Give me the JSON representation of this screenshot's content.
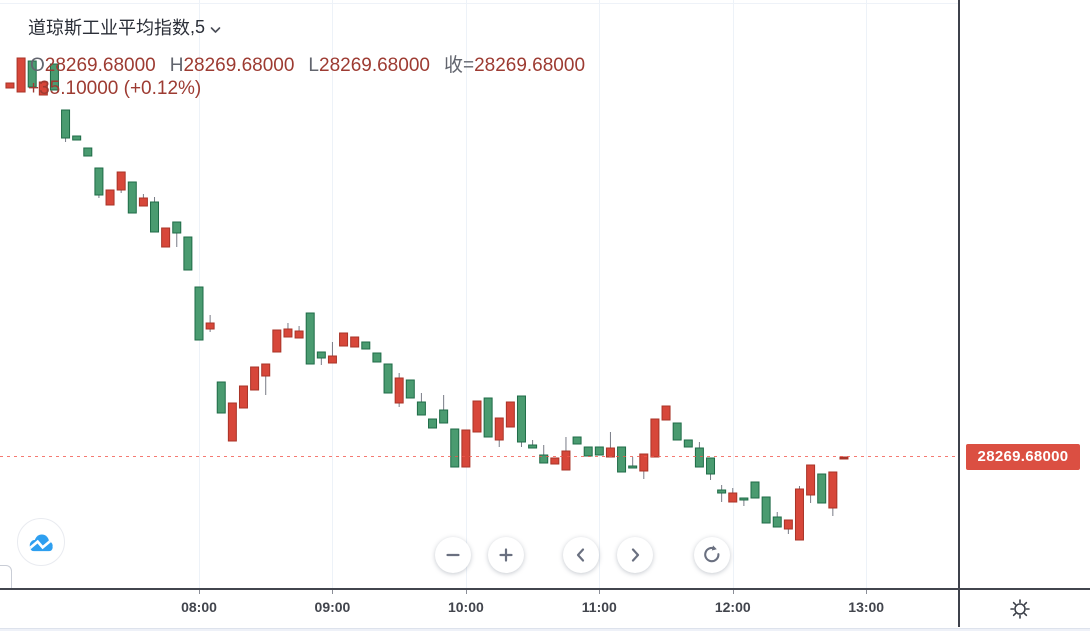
{
  "legend": {
    "symbol": "道琼斯工业平均指数",
    "separator": ", ",
    "interval": "5",
    "ohlc": [
      {
        "label": "O",
        "value": "28269.68000"
      },
      {
        "label": "H",
        "value": "28269.68000"
      },
      {
        "label": "L",
        "value": "28269.68000"
      },
      {
        "label": "收=",
        "value": "28269.68000"
      }
    ],
    "change": "+35.10000 (+0.12%)"
  },
  "price_axis": {
    "last_price": "28269.68000"
  },
  "time_axis": {
    "labels": [
      "08:00",
      "09:00",
      "10:00",
      "11:00",
      "12:00",
      "13:00"
    ]
  },
  "toolbar": {
    "buttons": [
      {
        "name": "zoom-out",
        "icon": "minus-icon"
      },
      {
        "name": "zoom-in",
        "icon": "plus-icon"
      },
      {
        "name": "pan-left",
        "icon": "chevron-left-icon"
      },
      {
        "name": "pan-right",
        "icon": "chevron-right-icon"
      },
      {
        "name": "reset",
        "icon": "reset-arrow-icon"
      }
    ]
  },
  "logo": {
    "icon": "cloud-chart-logo-icon"
  },
  "axis_settings": {
    "icon": "gear-icon"
  },
  "icons": {
    "interval_dropdown": "chevron-down-icon"
  },
  "colors": {
    "up_fill": "#d7473a",
    "up_border": "#a93327",
    "down_fill": "#4a9b70",
    "down_border": "#1f6b47",
    "wick": "#787b86",
    "price_line": "#f2544a",
    "price_label_bg": "#db4f42",
    "grid": "#edf2f8",
    "axis_border": "#3e414b",
    "title_text": "#2b2f38",
    "ohlc_label_text": "#62656e",
    "value_text": "#9d3b32",
    "logo_blue": "#2e9ff0"
  },
  "chart_data": {
    "type": "candlestick",
    "title": "道琼斯工业平均指数 5分钟",
    "interval_minutes": 5,
    "price_line_value": 28269.68,
    "x_labels": [
      "08:00",
      "09:00",
      "10:00",
      "11:00",
      "12:00",
      "13:00"
    ],
    "ylim": [
      28215,
      28495
    ],
    "grid": "vertical-hour-lines",
    "legend_position": "top-left",
    "up_means": "close >= open (red, CN convention)",
    "columns": [
      "time",
      "open",
      "high",
      "low",
      "close"
    ],
    "candles": [
      [
        "06:35",
        28472.63,
        28475.38,
        28472.63,
        28475.38
      ],
      [
        "06:40",
        28470.43,
        28489.13,
        28470.43,
        28489.13
      ],
      [
        "06:45",
        28487.48,
        28487.48,
        28473.18,
        28473.18
      ],
      [
        "06:50",
        28468.78,
        28475.93,
        28468.78,
        28475.93
      ],
      [
        "06:55",
        28485.83,
        28485.83,
        28471.53,
        28471.53
      ],
      [
        "07:00",
        28460.53,
        28460.53,
        28442.93,
        28445.13
      ],
      [
        "07:05",
        28446.23,
        28446.23,
        28444.03,
        28444.03
      ],
      [
        "07:10",
        28439.63,
        28439.63,
        28435.23,
        28435.23
      ],
      [
        "07:15",
        28428.63,
        28428.63,
        28412.13,
        28413.78
      ],
      [
        "07:20",
        28408.28,
        28416.53,
        28408.28,
        28416.53
      ],
      [
        "07:25",
        28416.53,
        28426.43,
        28414.88,
        28426.43
      ],
      [
        "07:30",
        28420.93,
        28420.93,
        28403.88,
        28403.88
      ],
      [
        "07:35",
        28407.73,
        28414.33,
        28407.73,
        28412.13
      ],
      [
        "07:40",
        28409.93,
        28412.68,
        28393.43,
        28393.43
      ],
      [
        "07:45",
        28385.18,
        28395.63,
        28385.18,
        28395.63
      ],
      [
        "07:50",
        28398.93,
        28398.93,
        28385.18,
        28392.88
      ],
      [
        "07:55",
        28390.68,
        28390.68,
        28372.53,
        28372.53
      ],
      [
        "08:00",
        28363.18,
        28363.18,
        28334.03,
        28334.03
      ],
      [
        "08:05",
        28340.08,
        28347.78,
        28338.43,
        28343.38
      ],
      [
        "08:10",
        28310.93,
        28310.93,
        28293.88,
        28293.88
      ],
      [
        "08:15",
        28278.48,
        28299.38,
        28278.48,
        28299.38
      ],
      [
        "08:20",
        28296.63,
        28308.73,
        28296.63,
        28308.73
      ],
      [
        "08:25",
        28306.53,
        28319.18,
        28306.53,
        28319.18
      ],
      [
        "08:30",
        28314.23,
        28320.83,
        28303.78,
        28320.83
      ],
      [
        "08:35",
        28327.43,
        28339.53,
        28327.43,
        28339.53
      ],
      [
        "08:40",
        28335.68,
        28343.38,
        28335.68,
        28340.08
      ],
      [
        "08:45",
        28335.13,
        28341.73,
        28335.13,
        28338.98
      ],
      [
        "08:50",
        28348.88,
        28348.88,
        28320.83,
        28320.83
      ],
      [
        "08:55",
        28327.43,
        28327.43,
        28320.28,
        28324.13
      ],
      [
        "09:00",
        28321.38,
        28332.93,
        28321.38,
        28325.23
      ],
      [
        "09:05",
        28330.73,
        28337.88,
        28330.73,
        28337.88
      ],
      [
        "09:10",
        28330.18,
        28335.68,
        28330.18,
        28335.68
      ],
      [
        "09:15",
        28332.93,
        28332.93,
        28329.08,
        28329.08
      ],
      [
        "09:20",
        28326.88,
        28326.88,
        28321.93,
        28321.93
      ],
      [
        "09:25",
        28320.83,
        28320.83,
        28304.88,
        28304.88
      ],
      [
        "09:30",
        28299.38,
        28315.88,
        28297.18,
        28313.13
      ],
      [
        "09:35",
        28312.03,
        28312.03,
        28302.13,
        28302.13
      ],
      [
        "09:40",
        28299.93,
        28304.88,
        28292.78,
        28292.78
      ],
      [
        "09:45",
        28290.58,
        28290.58,
        28285.63,
        28285.63
      ],
      [
        "09:50",
        28295.53,
        28303.78,
        28288.38,
        28288.38
      ],
      [
        "09:55",
        28285.08,
        28285.08,
        28264.18,
        28264.18
      ],
      [
        "10:00",
        28264.18,
        28284.53,
        28264.18,
        28284.53
      ],
      [
        "10:05",
        28283.43,
        28300.48,
        28283.43,
        28300.48
      ],
      [
        "10:10",
        28302.13,
        28302.13,
        28280.68,
        28280.68
      ],
      [
        "10:15",
        28279.03,
        28291.13,
        28275.18,
        28291.13
      ],
      [
        "10:20",
        28286.18,
        28299.93,
        28286.18,
        28299.93
      ],
      [
        "10:25",
        28303.23,
        28303.23,
        28275.18,
        28277.93
      ],
      [
        "10:30",
        28276.28,
        28279.03,
        28274.63,
        28274.63
      ],
      [
        "10:35",
        28270.78,
        28276.28,
        28266.38,
        28266.38
      ],
      [
        "10:40",
        28265.83,
        28269.13,
        28265.83,
        28269.13
      ],
      [
        "10:45",
        28262.53,
        28280.68,
        28262.53,
        28272.98
      ],
      [
        "10:50",
        28280.68,
        28280.68,
        28276.83,
        28276.83
      ],
      [
        "10:55",
        28275.18,
        28275.18,
        28270.23,
        28270.23
      ],
      [
        "11:00",
        28275.18,
        28275.18,
        28270.78,
        28270.78
      ],
      [
        "11:05",
        28269.68,
        28283.43,
        28269.68,
        28274.63
      ],
      [
        "11:10",
        28275.18,
        28275.18,
        28261.43,
        28261.43
      ],
      [
        "11:15",
        28264.73,
        28269.68,
        28263.63,
        28263.63
      ],
      [
        "11:20",
        28261.98,
        28271.33,
        28257.58,
        28271.33
      ],
      [
        "11:25",
        28269.68,
        28290.58,
        28269.68,
        28290.58
      ],
      [
        "11:30",
        28290.03,
        28297.73,
        28290.03,
        28297.73
      ],
      [
        "11:35",
        28288.38,
        28288.38,
        28279.03,
        28279.03
      ],
      [
        "11:40",
        28279.03,
        28279.03,
        28275.18,
        28275.18
      ],
      [
        "11:45",
        28274.63,
        28277.93,
        28264.18,
        28264.18
      ],
      [
        "11:50",
        28269.13,
        28269.13,
        28257.03,
        28260.33
      ],
      [
        "11:55",
        28251.53,
        28254.28,
        28244.93,
        28249.88
      ],
      [
        "12:00",
        28244.93,
        28252.63,
        28244.93,
        28249.88
      ],
      [
        "12:05",
        28247.13,
        28247.13,
        28242.73,
        28246.03
      ],
      [
        "12:10",
        28255.93,
        28255.93,
        28247.13,
        28247.13
      ],
      [
        "12:15",
        28247.68,
        28247.68,
        28233.38,
        28233.38
      ],
      [
        "12:20",
        28236.68,
        28239.43,
        28231.18,
        28231.18
      ],
      [
        "12:25",
        28230.08,
        28235.03,
        28227.33,
        28235.03
      ],
      [
        "12:30",
        28224.03,
        28253.73,
        28224.03,
        28252.08
      ],
      [
        "12:35",
        28248.78,
        28265.28,
        28244.38,
        28265.28
      ],
      [
        "12:40",
        28260.33,
        28260.33,
        28244.38,
        28244.38
      ],
      [
        "12:45",
        28241.63,
        28261.43,
        28237.23,
        28261.43
      ],
      [
        "12:50",
        28269.68,
        28269.68,
        28269.68,
        28269.68
      ]
    ]
  }
}
